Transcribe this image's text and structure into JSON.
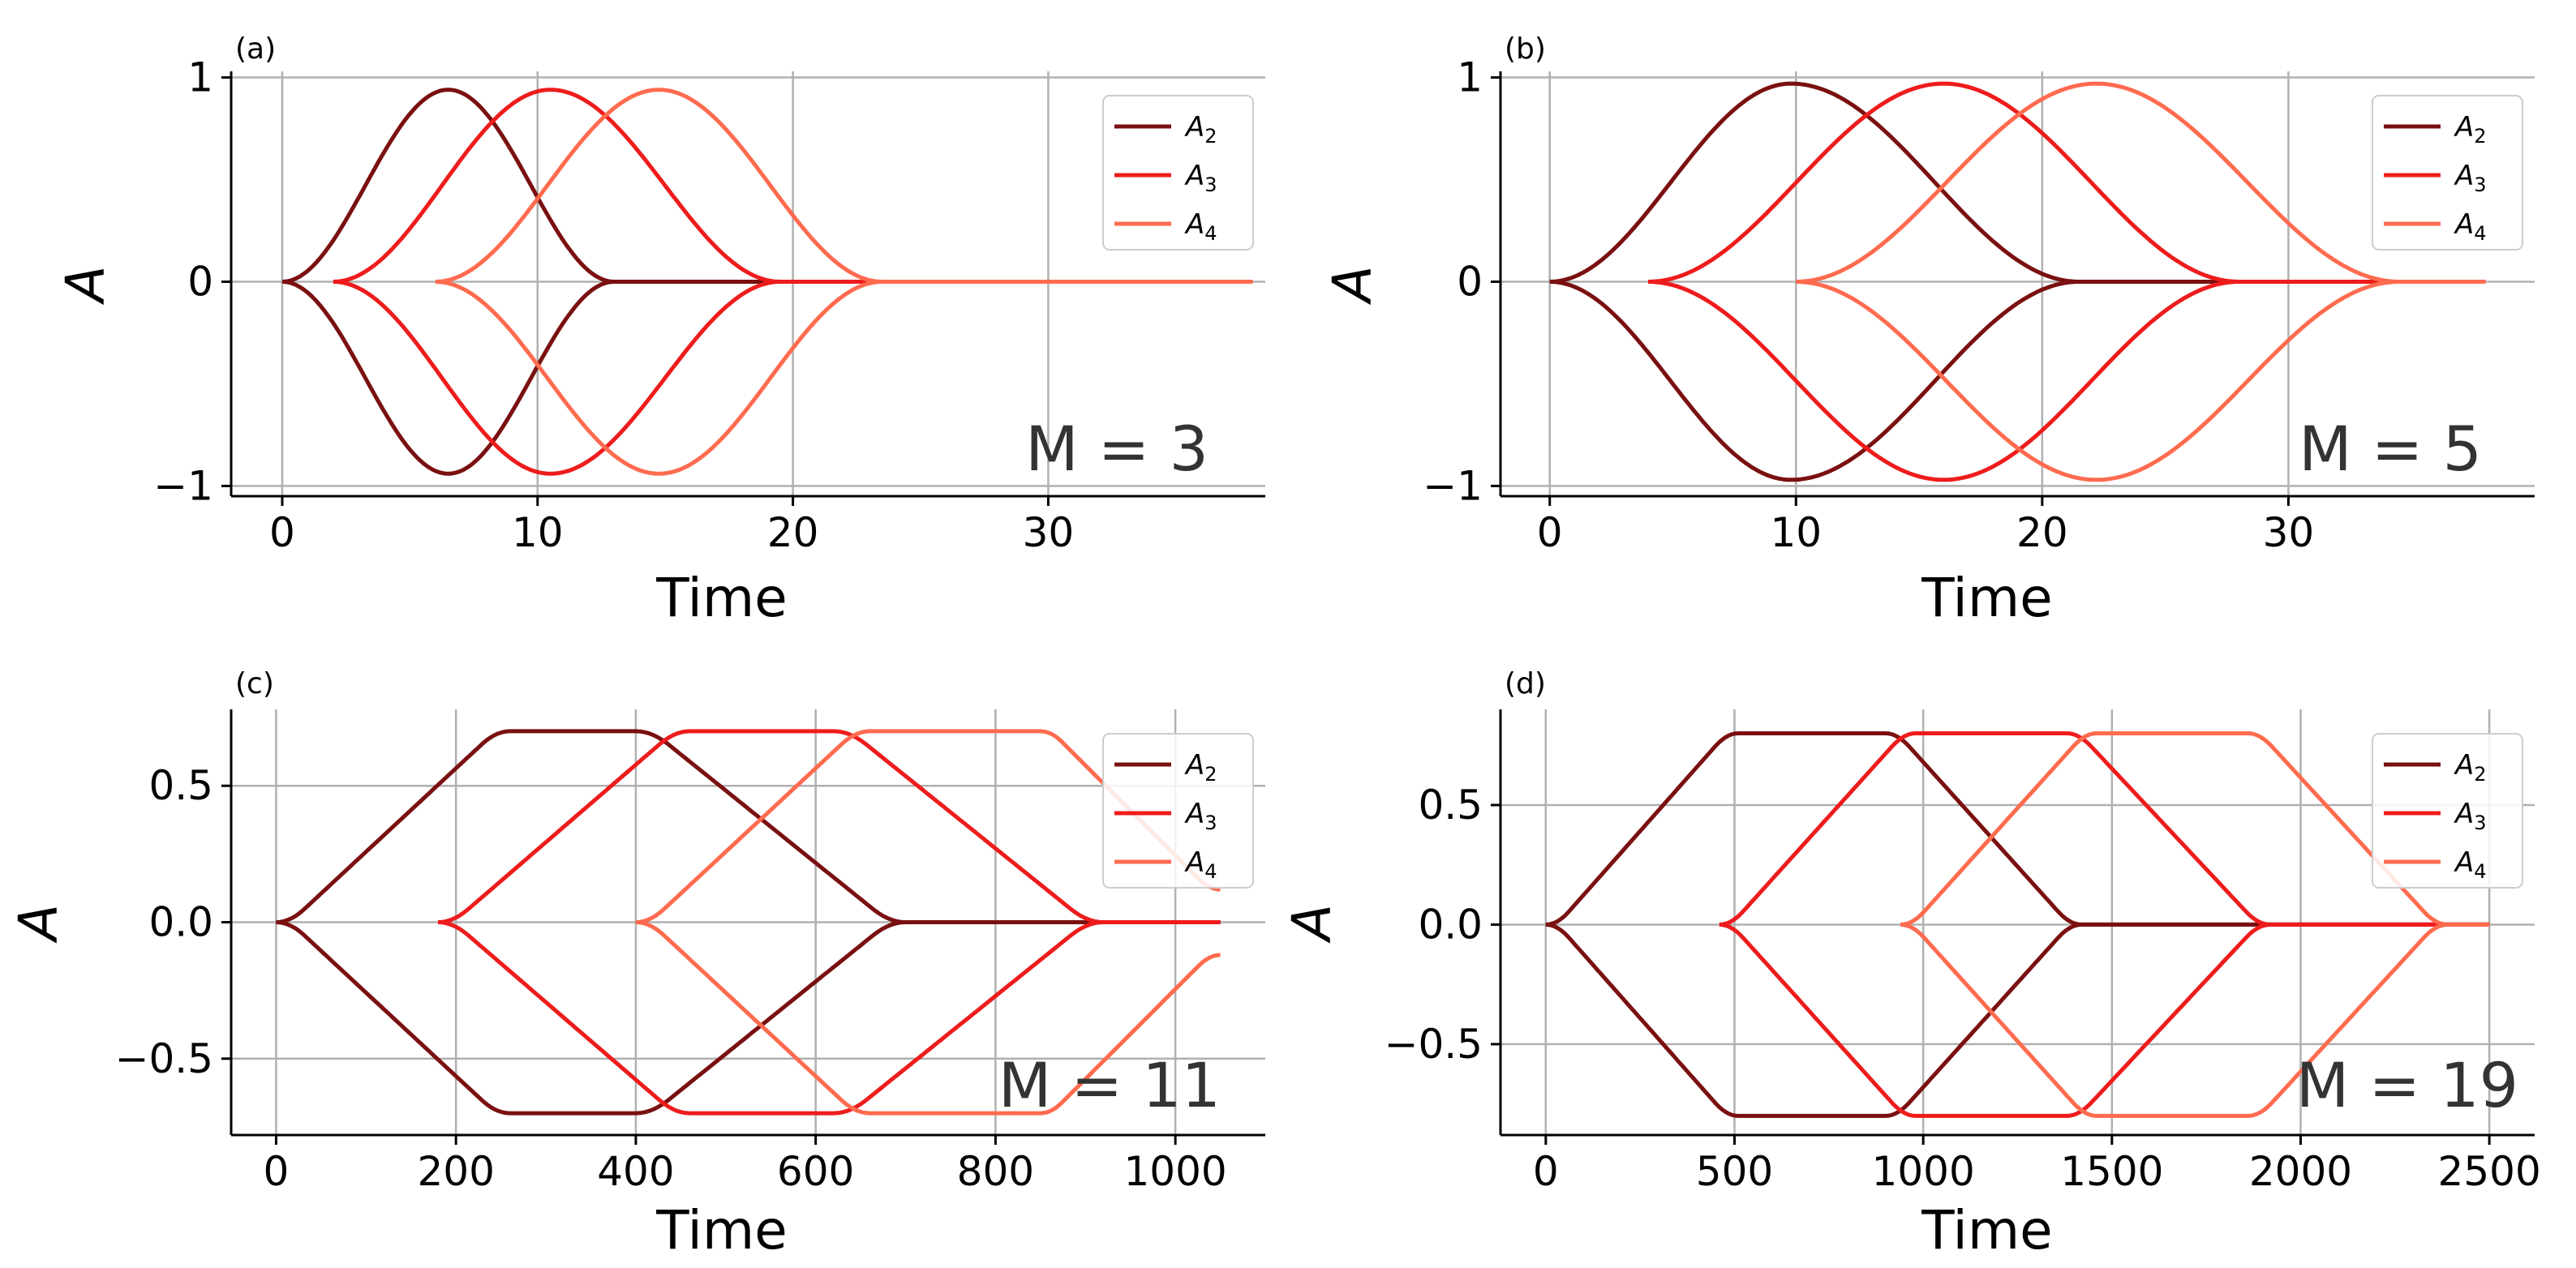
{
  "chart_data": [
    {
      "type": "line",
      "panel_label": "(a)",
      "annotation": "M = 3",
      "xlabel": "Time",
      "ylabel": "A",
      "xlim": [
        -2,
        38.5
      ],
      "ylim": [
        -1.05,
        1.03
      ],
      "xticks": [
        0,
        10,
        20,
        30
      ],
      "yticks": [
        -1,
        0,
        1
      ],
      "ytick_labels": [
        "−1",
        "0",
        "1"
      ],
      "grid": true,
      "legend": "top-right",
      "series": [
        {
          "name": "A2",
          "color": "#7a1010",
          "x": [
            0,
            6.5,
            13,
            38
          ],
          "y": [
            0,
            0.94,
            0,
            0
          ],
          "mirror": true,
          "plateau": false
        },
        {
          "name": "A3",
          "color": "#ee1c1c",
          "x": [
            2,
            10.5,
            19.5,
            38
          ],
          "y": [
            0,
            0.94,
            0,
            0
          ],
          "mirror": true,
          "plateau": false
        },
        {
          "name": "A4",
          "color": "#ff6b4f",
          "x": [
            6,
            14.75,
            23.5,
            38
          ],
          "y": [
            0,
            0.94,
            0,
            0
          ],
          "mirror": true,
          "plateau": false
        }
      ]
    },
    {
      "type": "line",
      "panel_label": "(b)",
      "annotation": "M = 5",
      "xlabel": "Time",
      "ylabel": "A",
      "xlim": [
        -2,
        40
      ],
      "ylim": [
        -1.05,
        1.03
      ],
      "xticks": [
        0,
        10,
        20,
        30
      ],
      "yticks": [
        -1,
        0,
        1
      ],
      "ytick_labels": [
        "−1",
        "0",
        "1"
      ],
      "grid": true,
      "legend": "top-right",
      "series": [
        {
          "name": "A2",
          "color": "#7a1010",
          "x": [
            0,
            9.8,
            21.5,
            38
          ],
          "y": [
            0,
            0.97,
            0,
            0
          ],
          "mirror": true,
          "plateau": false
        },
        {
          "name": "A3",
          "color": "#ee1c1c",
          "x": [
            4,
            16,
            28,
            38
          ],
          "y": [
            0,
            0.97,
            0,
            0
          ],
          "mirror": true,
          "plateau": false
        },
        {
          "name": "A4",
          "color": "#ff6b4f",
          "x": [
            10,
            22.2,
            34.5,
            38
          ],
          "y": [
            0,
            0.97,
            0,
            0
          ],
          "mirror": true,
          "plateau": false
        }
      ]
    },
    {
      "type": "line",
      "panel_label": "(c)",
      "annotation": "M = 11",
      "xlabel": "Time",
      "ylabel": "A",
      "xlim": [
        -50,
        1100
      ],
      "ylim": [
        -0.78,
        0.78
      ],
      "xticks": [
        0,
        200,
        400,
        600,
        800,
        1000
      ],
      "yticks": [
        -0.5,
        0.0,
        0.5
      ],
      "ytick_labels": [
        "−0.5",
        "0.0",
        "0.5"
      ],
      "grid": true,
      "legend": "top-right",
      "series": [
        {
          "name": "A2",
          "color": "#7a1010",
          "x": [
            0,
            260,
            400,
            700,
            1050
          ],
          "y": [
            0,
            0.7,
            0.7,
            0,
            0
          ],
          "mirror": true,
          "plateau": true
        },
        {
          "name": "A3",
          "color": "#ee1c1c",
          "x": [
            180,
            460,
            620,
            920,
            1050
          ],
          "y": [
            0,
            0.7,
            0.7,
            0,
            0
          ],
          "mirror": true,
          "plateau": true
        },
        {
          "name": "A4",
          "color": "#ff6b4f",
          "x": [
            400,
            660,
            850,
            1050
          ],
          "y": [
            0,
            0.7,
            0.7,
            0.12
          ],
          "mirror": true,
          "plateau": true
        }
      ]
    },
    {
      "type": "line",
      "panel_label": "(d)",
      "annotation": "M = 19",
      "xlabel": "Time",
      "ylabel": "A",
      "xlim": [
        -120,
        2620
      ],
      "ylim": [
        -0.88,
        0.9
      ],
      "xticks": [
        0,
        500,
        1000,
        1500,
        2000,
        2500
      ],
      "yticks": [
        -0.5,
        0.0,
        0.5
      ],
      "ytick_labels": [
        "−0.5",
        "0.0",
        "0.5"
      ],
      "grid": true,
      "legend": "top-right",
      "series": [
        {
          "name": "A2",
          "color": "#7a1010",
          "x": [
            0,
            510,
            900,
            1420,
            2500
          ],
          "y": [
            0,
            0.8,
            0.8,
            0,
            0
          ],
          "mirror": true,
          "plateau": true
        },
        {
          "name": "A3",
          "color": "#ee1c1c",
          "x": [
            460,
            980,
            1380,
            1920,
            2500
          ],
          "y": [
            0,
            0.8,
            0.8,
            0,
            0
          ],
          "mirror": true,
          "plateau": true
        },
        {
          "name": "A4",
          "color": "#ff6b4f",
          "x": [
            940,
            1460,
            1860,
            2390,
            2500
          ],
          "y": [
            0,
            0.8,
            0.8,
            0,
            0
          ],
          "mirror": true,
          "plateau": true
        }
      ]
    }
  ],
  "legend_labels": [
    "A",
    "A",
    "A"
  ],
  "legend_subscripts": [
    "2",
    "3",
    "4"
  ]
}
